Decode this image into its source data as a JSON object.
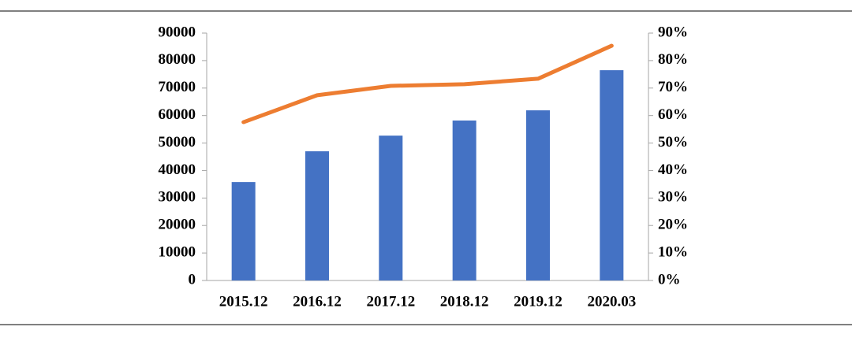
{
  "chart_data": {
    "type": "bar-line",
    "categories": [
      "2015.12",
      "2016.12",
      "2017.12",
      "2018.12",
      "2019.12",
      "2020.03"
    ],
    "series": [
      {
        "type": "bar",
        "color": "#4472c4",
        "values": [
          35800,
          47000,
          52700,
          58200,
          61900,
          76500
        ]
      },
      {
        "type": "line",
        "axis": "y2",
        "color": "#ed7d31",
        "values": [
          57.6,
          67.4,
          70.8,
          71.4,
          73.4,
          85.4
        ]
      }
    ],
    "ylim": [
      0,
      90000
    ],
    "yticks": [
      0,
      10000,
      20000,
      30000,
      40000,
      50000,
      60000,
      70000,
      80000,
      90000
    ],
    "y2lim": [
      0,
      90
    ],
    "y2ticks": [
      {
        "value": 0,
        "label": "0%"
      },
      {
        "value": 10,
        "label": "10%"
      },
      {
        "value": 20,
        "label": "20%"
      },
      {
        "value": 30,
        "label": "30%"
      },
      {
        "value": 40,
        "label": "40%"
      },
      {
        "value": 50,
        "label": "50%"
      },
      {
        "value": 60,
        "label": "60%"
      },
      {
        "value": 70,
        "label": "70%"
      },
      {
        "value": 80,
        "label": "80%"
      },
      {
        "value": 90,
        "label": "90%"
      }
    ]
  }
}
